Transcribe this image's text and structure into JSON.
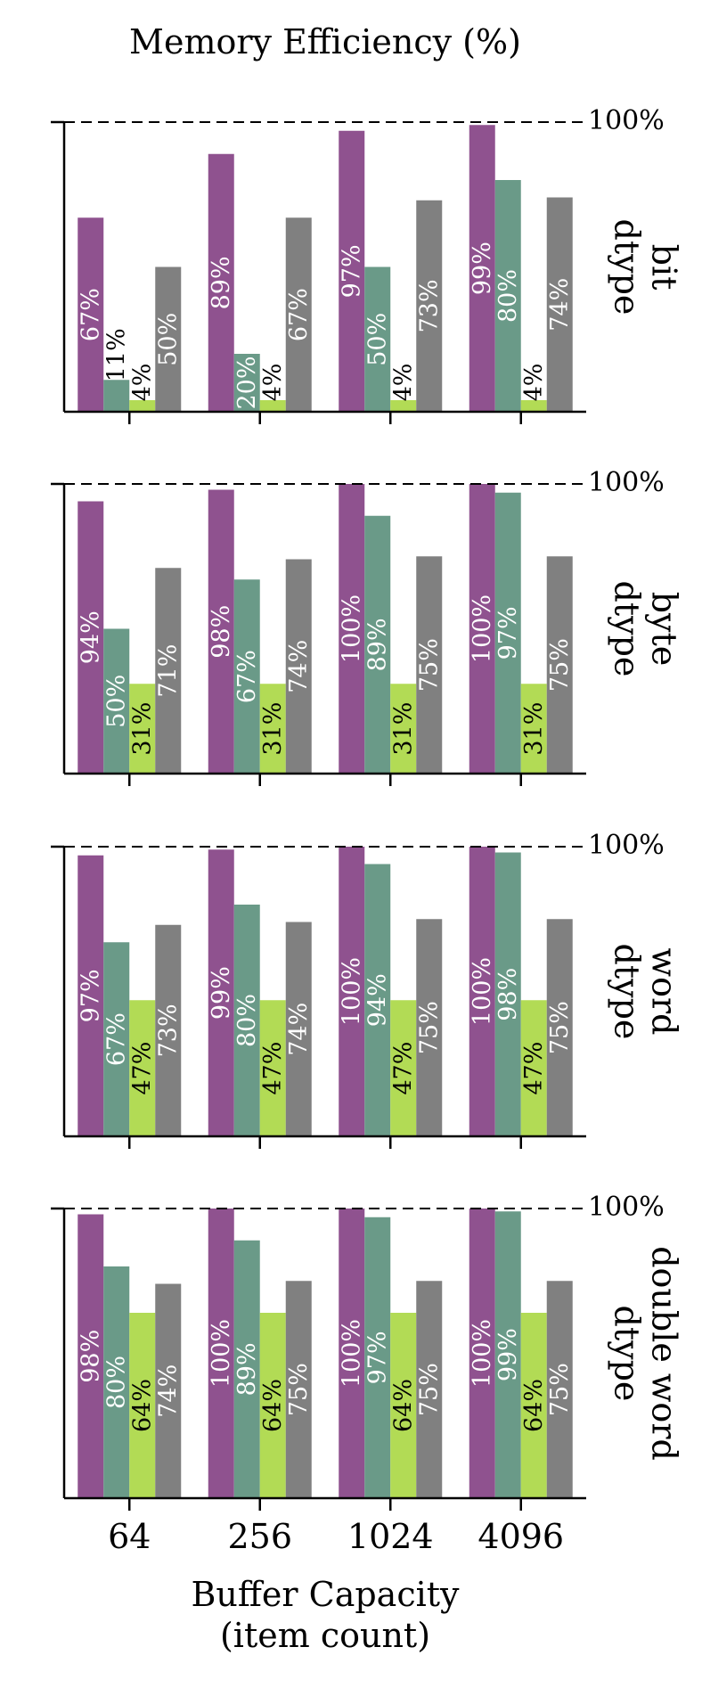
{
  "title": "Memory Efficiency (%)",
  "xlabel_line1": "Buffer Capacity",
  "xlabel_line2": "(item count)",
  "reference_label": "100%",
  "colors": {
    "series_0": "#8f528f",
    "series_1": "#6a9a88",
    "series_2": "#b2db55",
    "series_3": "#808080",
    "label_light": "#ffffff",
    "label_dark": "#000000",
    "axis": "#000000"
  },
  "chart_data": {
    "type": "bar",
    "categories": [
      "64",
      "256",
      "1024",
      "4096"
    ],
    "ylim": [
      0,
      100
    ],
    "reference_line": 100,
    "grid": false,
    "legend": "none",
    "panels": [
      {
        "row_label_lines": [
          "bit",
          "dtype"
        ],
        "series": [
          {
            "values": [
              67,
              89,
              97,
              99
            ],
            "labels": [
              "67%",
              "89%",
              "97%",
              "99%"
            ]
          },
          {
            "values": [
              11,
              20,
              50,
              80
            ],
            "labels": [
              "11%",
              "20%",
              "50%",
              "80%"
            ]
          },
          {
            "values": [
              4,
              4,
              4,
              4
            ],
            "labels": [
              "4%",
              "4%",
              "4%",
              "4%"
            ]
          },
          {
            "values": [
              50,
              67,
              73,
              74
            ],
            "labels": [
              "50%",
              "67%",
              "73%",
              "74%"
            ]
          }
        ]
      },
      {
        "row_label_lines": [
          "byte",
          "dtype"
        ],
        "series": [
          {
            "values": [
              94,
              98,
              100,
              100
            ],
            "labels": [
              "94%",
              "98%",
              "100%",
              "100%"
            ]
          },
          {
            "values": [
              50,
              67,
              89,
              97
            ],
            "labels": [
              "50%",
              "67%",
              "89%",
              "97%"
            ]
          },
          {
            "values": [
              31,
              31,
              31,
              31
            ],
            "labels": [
              "31%",
              "31%",
              "31%",
              "31%"
            ]
          },
          {
            "values": [
              71,
              74,
              75,
              75
            ],
            "labels": [
              "71%",
              "74%",
              "75%",
              "75%"
            ]
          }
        ]
      },
      {
        "row_label_lines": [
          "word",
          "dtype"
        ],
        "series": [
          {
            "values": [
              97,
              99,
              100,
              100
            ],
            "labels": [
              "97%",
              "99%",
              "100%",
              "100%"
            ]
          },
          {
            "values": [
              67,
              80,
              94,
              98
            ],
            "labels": [
              "67%",
              "80%",
              "94%",
              "98%"
            ]
          },
          {
            "values": [
              47,
              47,
              47,
              47
            ],
            "labels": [
              "47%",
              "47%",
              "47%",
              "47%"
            ]
          },
          {
            "values": [
              73,
              74,
              75,
              75
            ],
            "labels": [
              "73%",
              "74%",
              "75%",
              "75%"
            ]
          }
        ]
      },
      {
        "row_label_lines": [
          "double word",
          "dtype"
        ],
        "series": [
          {
            "values": [
              98,
              100,
              100,
              100
            ],
            "labels": [
              "98%",
              "100%",
              "100%",
              "100%"
            ]
          },
          {
            "values": [
              80,
              89,
              97,
              99
            ],
            "labels": [
              "80%",
              "89%",
              "97%",
              "99%"
            ]
          },
          {
            "values": [
              64,
              64,
              64,
              64
            ],
            "labels": [
              "64%",
              "64%",
              "64%",
              "64%"
            ]
          },
          {
            "values": [
              74,
              75,
              75,
              75
            ],
            "labels": [
              "74%",
              "75%",
              "75%",
              "75%"
            ]
          }
        ]
      }
    ]
  }
}
